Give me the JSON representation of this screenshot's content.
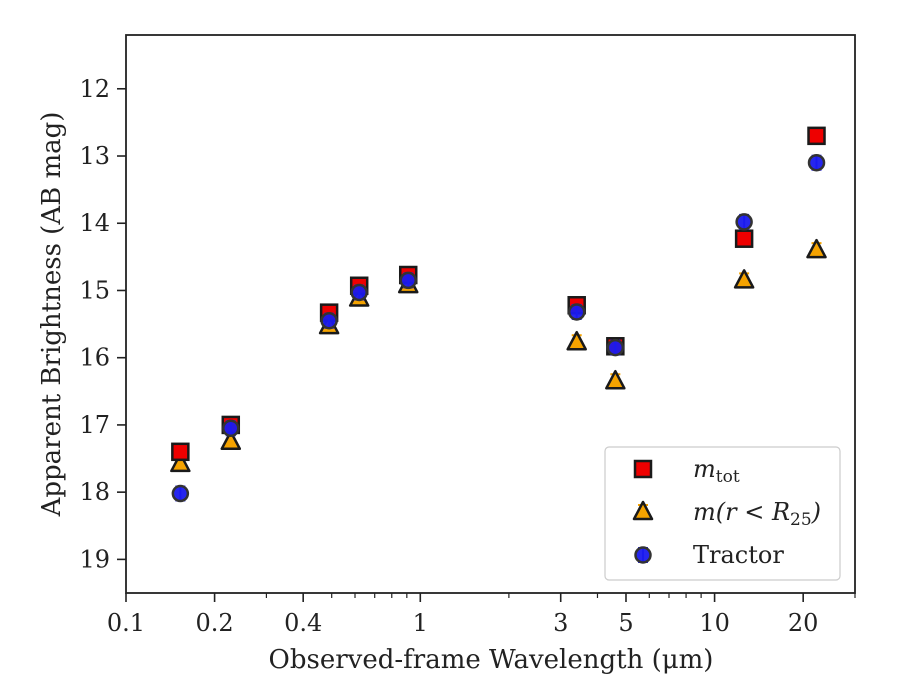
{
  "chart_data": {
    "type": "scatter",
    "xlabel": "Observed-frame Wavelength (μm)",
    "ylabel": "Apparent Brightness (AB mag)",
    "xscale": "log",
    "xlim": [
      0.1,
      30
    ],
    "ylim": [
      19.5,
      11.2
    ],
    "y_inverted": true,
    "x_ticks": [
      0.1,
      0.2,
      0.4,
      1,
      3,
      5,
      10,
      20
    ],
    "x_tick_labels": [
      "0.1",
      "0.2",
      "0.4",
      "1",
      "3",
      "5",
      "10",
      "20"
    ],
    "y_ticks": [
      12,
      13,
      14,
      15,
      16,
      17,
      18,
      19
    ],
    "y_tick_labels": [
      "12",
      "13",
      "14",
      "15",
      "16",
      "17",
      "18",
      "19"
    ],
    "legend_position": "lower-right",
    "series": [
      {
        "label_base": "m",
        "label_sub": "tot",
        "marker": "square",
        "fill": "#ee0000",
        "errcolor": "#ee0000",
        "points": [
          {
            "x": 0.153,
            "y": 17.4
          },
          {
            "x": 0.227,
            "y": 17.0
          },
          {
            "x": 0.49,
            "y": 15.33
          },
          {
            "x": 0.62,
            "y": 14.93
          },
          {
            "x": 0.91,
            "y": 14.77
          },
          {
            "x": 3.4,
            "y": 15.22
          },
          {
            "x": 4.6,
            "y": 15.83
          },
          {
            "x": 12.6,
            "y": 14.23
          },
          {
            "x": 22.2,
            "y": 12.7
          }
        ]
      },
      {
        "label_base": "m(r < R",
        "label_sub": "25",
        "label_tail": ")",
        "marker": "triangle",
        "fill": "#f5a300",
        "errcolor": "#f5a300",
        "points": [
          {
            "x": 0.153,
            "y": 17.58
          },
          {
            "x": 0.227,
            "y": 17.25
          },
          {
            "x": 0.49,
            "y": 15.53
          },
          {
            "x": 0.62,
            "y": 15.12
          },
          {
            "x": 0.91,
            "y": 14.92
          },
          {
            "x": 3.4,
            "y": 15.77
          },
          {
            "x": 4.6,
            "y": 16.35
          },
          {
            "x": 12.6,
            "y": 14.85
          },
          {
            "x": 22.2,
            "y": 14.4
          }
        ]
      },
      {
        "name": "Tractor",
        "marker": "circle",
        "fill": "#1a1aee",
        "errcolor": "#2222ff",
        "points": [
          {
            "x": 0.153,
            "y": 18.02
          },
          {
            "x": 0.227,
            "y": 17.05
          },
          {
            "x": 0.49,
            "y": 15.45
          },
          {
            "x": 0.62,
            "y": 15.03
          },
          {
            "x": 0.91,
            "y": 14.85
          },
          {
            "x": 3.4,
            "y": 15.32
          },
          {
            "x": 4.6,
            "y": 15.85
          },
          {
            "x": 12.6,
            "y": 13.98
          },
          {
            "x": 22.2,
            "y": 13.1
          }
        ]
      }
    ]
  }
}
